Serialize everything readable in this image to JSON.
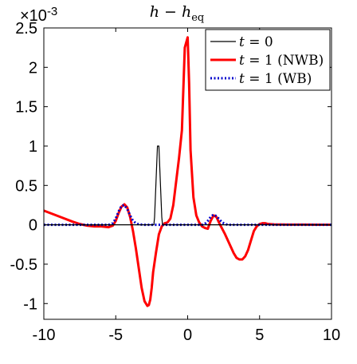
{
  "chart_data": {
    "type": "line",
    "title": "h − h",
    "title_subscript": "eq",
    "exponent_label": "×10",
    "exponent_power": "-3",
    "xlabel": "",
    "ylabel": "",
    "xlim": [
      -10,
      10
    ],
    "ylim": [
      -1.2,
      2.5
    ],
    "xticks": [
      -10,
      -5,
      0,
      5,
      10
    ],
    "xtick_labels": [
      "-10",
      "-5",
      "0",
      "5",
      "10"
    ],
    "yticks": [
      -1,
      -0.5,
      0,
      0.5,
      1,
      1.5,
      2,
      2.5
    ],
    "ytick_labels": [
      "-1",
      "-0.5",
      "0",
      "0.5",
      "1",
      "1.5",
      "2",
      "2.5"
    ],
    "grid": false,
    "legend_position": "top-right",
    "series": [
      {
        "name": "t = 0",
        "legend_var": "t",
        "legend_rest": " = 0",
        "color": "#000000",
        "style": "solid",
        "x": [
          -10,
          -2.35,
          -2.3,
          -2.2,
          -2.1,
          -2.0,
          -1.9,
          -1.8,
          -1.75,
          10
        ],
        "y": [
          0,
          0,
          0.1,
          0.55,
          1.0,
          1.0,
          0.55,
          0.1,
          0,
          0
        ]
      },
      {
        "name": "t = 1 (NWB)",
        "legend_var": "t",
        "legend_rest": " = 1 (NWB)",
        "color": "#ff0000",
        "style": "solid",
        "x": [
          -10,
          -9,
          -8,
          -7.5,
          -7,
          -6.5,
          -6,
          -5.5,
          -5.2,
          -5,
          -4.8,
          -4.6,
          -4.4,
          -4.2,
          -4.0,
          -3.8,
          -3.6,
          -3.4,
          -3.2,
          -3.0,
          -2.8,
          -2.7,
          -2.6,
          -2.5,
          -2.4,
          -2.2,
          -2.0,
          -1.8,
          -1.6,
          -1.4,
          -1.2,
          -1.0,
          -0.8,
          -0.6,
          -0.4,
          -0.2,
          0.0,
          0.1,
          0.2,
          0.4,
          0.6,
          0.8,
          1.0,
          1.2,
          1.4,
          1.6,
          1.8,
          2.0,
          2.2,
          2.4,
          2.6,
          2.8,
          3.0,
          3.2,
          3.4,
          3.6,
          3.8,
          4.0,
          4.2,
          4.4,
          4.6,
          4.8,
          5.0,
          5.2,
          5.4,
          5.6,
          6.0,
          7.0,
          8.0,
          9.0,
          10.0
        ],
        "y": [
          0.18,
          0.11,
          0.04,
          0.01,
          -0.01,
          -0.02,
          -0.02,
          -0.03,
          -0.01,
          0.05,
          0.15,
          0.23,
          0.26,
          0.22,
          0.1,
          -0.08,
          -0.3,
          -0.55,
          -0.8,
          -0.97,
          -1.03,
          -1.02,
          -0.95,
          -0.8,
          -0.6,
          -0.35,
          -0.12,
          -0.02,
          0.02,
          0.03,
          0.08,
          0.25,
          0.55,
          0.85,
          1.2,
          2.25,
          2.38,
          1.8,
          0.95,
          0.35,
          0.12,
          0.03,
          -0.02,
          -0.04,
          -0.05,
          0.05,
          0.12,
          0.1,
          0.02,
          -0.05,
          -0.12,
          -0.2,
          -0.28,
          -0.36,
          -0.42,
          -0.44,
          -0.44,
          -0.4,
          -0.32,
          -0.2,
          -0.08,
          -0.02,
          0.01,
          0.02,
          0.02,
          0.01,
          0.005,
          0.003,
          0.002,
          0.001,
          0.001
        ]
      },
      {
        "name": "t = 1 (WB)",
        "legend_var": "t",
        "legend_rest": " = 1 (WB)",
        "color": "#0000cc",
        "style": "dotted",
        "x": [
          -10,
          -6,
          -5.5,
          -5.2,
          -5.0,
          -4.8,
          -4.6,
          -4.4,
          -4.2,
          -4.0,
          -3.8,
          -3.6,
          -3.4,
          -3.0,
          1.0,
          1.2,
          1.4,
          1.6,
          1.8,
          2.0,
          2.2,
          2.4,
          2.6,
          2.8,
          3.2,
          10
        ],
        "y": [
          0,
          0,
          0.0,
          0.02,
          0.08,
          0.17,
          0.24,
          0.25,
          0.2,
          0.12,
          0.05,
          0.02,
          0.005,
          0,
          0,
          0.01,
          0.05,
          0.1,
          0.13,
          0.11,
          0.07,
          0.03,
          0.01,
          0.0,
          0,
          0
        ]
      }
    ]
  }
}
